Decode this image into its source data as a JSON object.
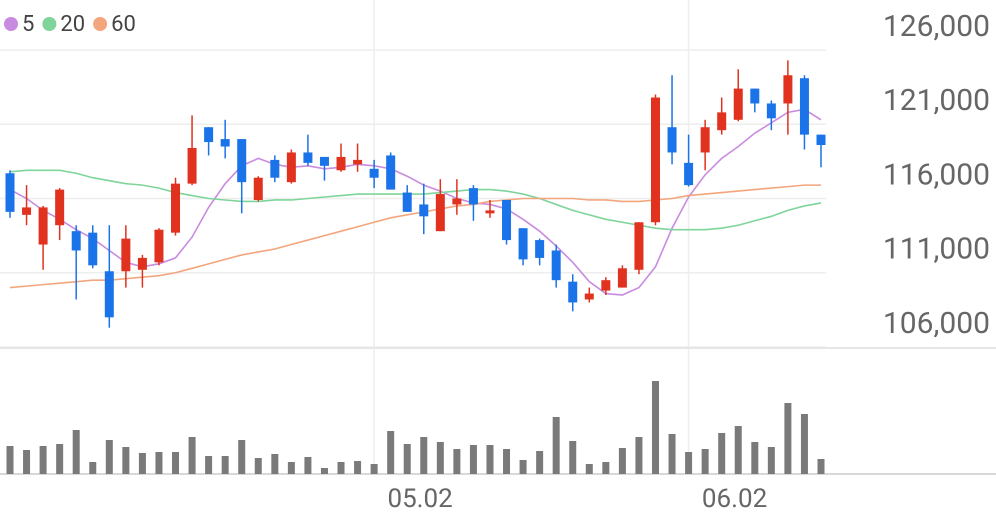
{
  "chart_data": {
    "type": "candlestick",
    "categories": [
      null,
      null,
      null,
      null,
      null,
      null,
      null,
      null,
      null,
      null,
      null,
      null,
      null,
      null,
      null,
      null,
      null,
      null,
      null,
      null,
      null,
      null,
      "05.02",
      null,
      null,
      null,
      null,
      null,
      null,
      null,
      null,
      null,
      null,
      null,
      null,
      null,
      null,
      null,
      null,
      null,
      null,
      "06.02",
      null,
      null,
      null,
      null,
      null,
      null,
      null,
      null
    ],
    "open": [
      117700,
      114900,
      112900,
      114200,
      113800,
      113700,
      111100,
      111100,
      111200,
      111700,
      113700,
      117000,
      120800,
      120000,
      120000,
      115900,
      118600,
      117100,
      119100,
      118800,
      117900,
      118300,
      118000,
      118900,
      116400,
      115600,
      113800,
      115600,
      116700,
      115000,
      115900,
      114000,
      113200,
      112500,
      110400,
      109200,
      109800,
      110000,
      111200,
      114400,
      120800,
      118400,
      119100,
      120600,
      121300,
      123400,
      122400,
      122400,
      124100,
      120300
    ],
    "high": [
      117900,
      116900,
      115500,
      116700,
      114200,
      114200,
      114200,
      114200,
      112200,
      114000,
      117400,
      121600,
      120800,
      121300,
      120000,
      117500,
      118900,
      119300,
      120300,
      118800,
      119700,
      119700,
      118600,
      119100,
      116900,
      117000,
      117300,
      117300,
      116900,
      115900,
      115900,
      114000,
      113300,
      112900,
      110900,
      110000,
      110700,
      111500,
      114400,
      123000,
      124300,
      120300,
      121300,
      122800,
      124700,
      123400,
      122600,
      125300,
      124300,
      120300
    ],
    "low": [
      114700,
      114200,
      111200,
      113200,
      109200,
      111300,
      107300,
      110000,
      110000,
      111500,
      113500,
      116900,
      118900,
      118700,
      115000,
      115800,
      117100,
      117000,
      118200,
      117200,
      117800,
      117800,
      116700,
      116600,
      115100,
      113600,
      113800,
      114900,
      114500,
      114700,
      112900,
      111500,
      111500,
      110000,
      108400,
      109000,
      109500,
      110000,
      110900,
      114200,
      118300,
      116800,
      117900,
      120300,
      121200,
      121800,
      120600,
      120300,
      119300,
      118100
    ],
    "close": [
      115100,
      115400,
      115400,
      116600,
      112500,
      111500,
      108000,
      113300,
      112000,
      113900,
      117000,
      119400,
      119800,
      119500,
      117100,
      117400,
      117400,
      119100,
      118400,
      118200,
      118800,
      118600,
      117400,
      116600,
      115100,
      114800,
      116300,
      116000,
      115600,
      115200,
      113200,
      111900,
      112000,
      110500,
      109000,
      109600,
      110500,
      111300,
      114400,
      122800,
      119100,
      116900,
      120800,
      121800,
      123400,
      122400,
      121400,
      124300,
      120300,
      119600
    ],
    "up_color": "#e0321e",
    "down_color": "#1a73e8",
    "series": [
      {
        "name": "5",
        "color": "#c98be0",
        "values": [
          116600,
          116000,
          115200,
          114600,
          113900,
          113300,
          112500,
          111700,
          111400,
          111600,
          112000,
          113400,
          115400,
          117000,
          118200,
          118700,
          118300,
          118100,
          118200,
          118000,
          118100,
          118300,
          118200,
          118000,
          117500,
          116900,
          116500,
          116000,
          115700,
          115600,
          115300,
          114600,
          113800,
          112800,
          111700,
          110400,
          109600,
          109500,
          110000,
          111400,
          114000,
          116100,
          117600,
          118700,
          119500,
          120400,
          121100,
          121800,
          122000,
          121300
        ]
      },
      {
        "name": "20",
        "color": "#7fd49a",
        "values": [
          117800,
          117900,
          117900,
          117900,
          117700,
          117400,
          117200,
          117000,
          116900,
          116700,
          116400,
          116200,
          116000,
          115900,
          115800,
          115800,
          115900,
          115900,
          116000,
          116100,
          116200,
          116300,
          116300,
          116300,
          116300,
          116300,
          116400,
          116500,
          116600,
          116600,
          116500,
          116300,
          116000,
          115600,
          115200,
          114900,
          114600,
          114400,
          114200,
          114000,
          113900,
          113900,
          113900,
          114000,
          114200,
          114500,
          114800,
          115200,
          115500,
          115700
        ]
      },
      {
        "name": "60",
        "color": "#f3a57e",
        "values": [
          110000,
          110100,
          110200,
          110300,
          110400,
          110500,
          110500,
          110600,
          110700,
          110800,
          111000,
          111300,
          111600,
          111900,
          112200,
          112400,
          112600,
          112900,
          113200,
          113500,
          113800,
          114100,
          114400,
          114700,
          114900,
          115100,
          115300,
          115500,
          115600,
          115800,
          115900,
          116000,
          116000,
          116000,
          116000,
          115900,
          115900,
          115800,
          115800,
          115900,
          116000,
          116200,
          116300,
          116400,
          116500,
          116600,
          116700,
          116800,
          116900,
          116900
        ]
      }
    ],
    "volume": {
      "color": "#7a7a7a",
      "values": [
        28,
        24,
        28,
        30,
        44,
        12,
        34,
        27,
        21,
        22,
        22,
        37,
        18,
        18,
        34,
        16,
        20,
        12,
        17,
        6,
        12,
        13,
        10,
        43,
        30,
        37,
        32,
        25,
        29,
        29,
        25,
        14,
        23,
        57,
        33,
        10,
        12,
        26,
        37,
        93,
        40,
        22,
        25,
        41,
        48,
        32,
        27,
        71,
        60,
        15
      ]
    },
    "vlim": [
      0,
      100
    ],
    "ylim": [
      106000,
      126000
    ],
    "yticks": [
      {
        "value": 126000,
        "label": "126,000"
      },
      {
        "value": 121000,
        "label": "121,000"
      },
      {
        "value": 116000,
        "label": "116,000"
      },
      {
        "value": 111000,
        "label": "111,000"
      },
      {
        "value": 106000,
        "label": "106,000"
      }
    ],
    "grid": true
  }
}
